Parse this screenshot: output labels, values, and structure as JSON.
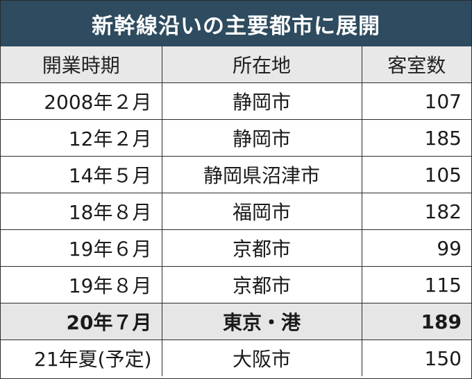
{
  "title": "新幹線沿いの主要都市に展開",
  "table": {
    "headers": [
      "開業時期",
      "所在地",
      "客室数"
    ],
    "rows": [
      {
        "date": "2008年２月",
        "location": "静岡市",
        "rooms": "107",
        "highlight": false
      },
      {
        "date": "12年２月",
        "location": "静岡市",
        "rooms": "185",
        "highlight": false
      },
      {
        "date": "14年５月",
        "location": "静岡県沼津市",
        "rooms": "105",
        "highlight": false
      },
      {
        "date": "18年８月",
        "location": "福岡市",
        "rooms": "182",
        "highlight": false
      },
      {
        "date": "19年６月",
        "location": "京都市",
        "rooms": "99",
        "highlight": false
      },
      {
        "date": "19年８月",
        "location": "京都市",
        "rooms": "115",
        "highlight": false
      },
      {
        "date": "20年７月",
        "location": "東京・港",
        "rooms": "189",
        "highlight": true
      },
      {
        "date": "21年夏(予定)",
        "location": "大阪市",
        "rooms": "150",
        "highlight": false
      }
    ]
  }
}
